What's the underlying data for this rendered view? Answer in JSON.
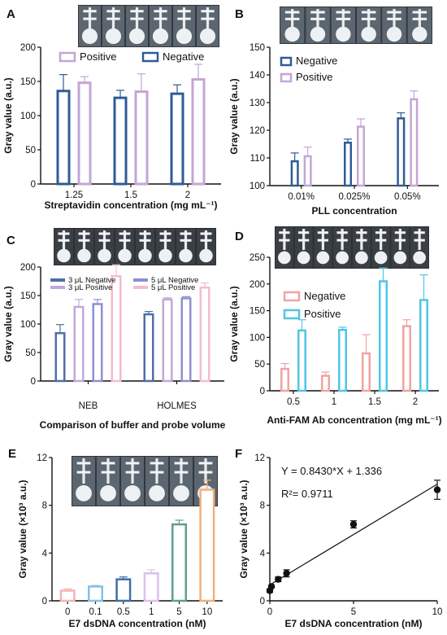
{
  "chart_data": [
    {
      "panel": "A",
      "type": "bar",
      "categories": [
        "1.25",
        "1.5",
        "2"
      ],
      "series": [
        {
          "name": "Negative",
          "color": "#2f5b97",
          "values": [
            136,
            126,
            132
          ],
          "errors": [
            24,
            11,
            13
          ]
        },
        {
          "name": "Positive",
          "color": "#c3a5d6",
          "values": [
            148,
            135,
            153
          ],
          "errors": [
            9,
            26,
            22
          ]
        }
      ],
      "legend": [
        "Positive",
        "Negative"
      ],
      "legend_position": "top",
      "xlabel": "Streptavidin concentration (mg mL⁻¹)",
      "ylabel": "Gray value (a.u.)",
      "ylim": [
        0,
        200
      ],
      "yticks": [
        "0",
        "50",
        "100",
        "150",
        "200"
      ]
    },
    {
      "panel": "B",
      "type": "bar",
      "categories": [
        "0.01%",
        "0.025%",
        "0.05%"
      ],
      "series": [
        {
          "name": "Negative",
          "color": "#2f5b97",
          "values": [
            108.8,
            115.5,
            124.3
          ],
          "errors": [
            3,
            1.3,
            2
          ]
        },
        {
          "name": "Positive",
          "color": "#c3a5d6",
          "values": [
            110.6,
            121.3,
            131.2
          ],
          "errors": [
            3.3,
            2.8,
            3
          ]
        }
      ],
      "legend": [
        "Negative",
        "Positive"
      ],
      "legend_position": "top-left",
      "xlabel": "PLL concentration",
      "ylabel": "Gray value (a.u.)",
      "ylim": [
        100,
        150
      ],
      "yticks": [
        "100",
        "110",
        "120",
        "130",
        "140",
        "150"
      ]
    },
    {
      "panel": "C",
      "type": "bar",
      "categories": [
        "NEB",
        "HOLMES"
      ],
      "series": [
        {
          "name": "3 μL Negative",
          "color": "#4f6fa8",
          "values": [
            84,
            117
          ],
          "errors": [
            15,
            5
          ]
        },
        {
          "name": "3 μL Positive",
          "color": "#c4a7da",
          "values": [
            130,
            143
          ],
          "errors": [
            13,
            3
          ]
        },
        {
          "name": "5 μL Negative",
          "color": "#8e8fd2",
          "values": [
            135,
            145
          ],
          "errors": [
            8,
            3
          ]
        },
        {
          "name": "5 μL Positive",
          "color": "#f6bcca",
          "values": [
            184,
            164
          ],
          "errors": [
            20,
            8
          ]
        }
      ],
      "legend_position": "top",
      "xlabel": "Comparison of buffer and probe volume",
      "ylabel": "Gray value (a.u.)",
      "ylim": [
        0,
        200
      ],
      "yticks": [
        "0",
        "50",
        "100",
        "150",
        "200"
      ]
    },
    {
      "panel": "D",
      "type": "bar",
      "categories": [
        "0.5",
        "1",
        "1.5",
        "2"
      ],
      "series": [
        {
          "name": "Negative",
          "color": "#f1a3a0",
          "values": [
            41,
            28,
            70,
            121
          ],
          "errors": [
            10,
            7,
            35,
            12
          ]
        },
        {
          "name": "Positive",
          "color": "#4fc6e6",
          "values": [
            113,
            114,
            205,
            170
          ],
          "errors": [
            20,
            5,
            25,
            47
          ]
        }
      ],
      "legend": [
        "Negative",
        "Positive"
      ],
      "legend_position": "top-left",
      "xlabel": "Anti-FAM Ab concentration (mg mL⁻¹)",
      "ylabel": "Gray value (a.u.)",
      "ylim": [
        0,
        250
      ],
      "yticks": [
        "0",
        "50",
        "100",
        "150",
        "200",
        "250"
      ]
    },
    {
      "panel": "E",
      "type": "bar",
      "categories": [
        "0",
        "0.1",
        "0.5",
        "1",
        "5",
        "10"
      ],
      "series": [
        {
          "values": [
            0.85,
            1.2,
            1.8,
            2.3,
            6.4,
            9.3
          ],
          "errors": [
            0.15,
            0.08,
            0.2,
            0.3,
            0.35,
            0.8
          ],
          "colors": [
            "#f6b2b2",
            "#86bfe8",
            "#3f6fa8",
            "#dcc0ea",
            "#5e9e92",
            "#f2b07a"
          ]
        }
      ],
      "xlabel": "E7 dsDNA concentration (nM)",
      "ylabel": "Gray value (×10³ a.u.)",
      "ylim": [
        0,
        12
      ],
      "yticks": [
        "0",
        "4",
        "8",
        "12"
      ]
    },
    {
      "panel": "F",
      "type": "scatter",
      "x": [
        0,
        0.1,
        0.5,
        1,
        5,
        10
      ],
      "y": [
        0.85,
        1.2,
        1.8,
        2.3,
        6.4,
        9.3
      ],
      "errors": [
        0.15,
        0.1,
        0.2,
        0.3,
        0.3,
        0.8
      ],
      "fit": {
        "slope": 0.843,
        "intercept": 1.336,
        "equation": "Y = 0.8430*X + 1.336",
        "r2": "R²= 0.9711"
      },
      "xlabel": "E7 dsDNA concentration (nM)",
      "ylabel": "Gray value (×10³ a.u.)",
      "xlim": [
        0,
        10
      ],
      "ylim": [
        0,
        12
      ],
      "xticks": [
        "0",
        "5",
        "10"
      ],
      "yticks": [
        "0",
        "4",
        "8",
        "12"
      ]
    }
  ]
}
